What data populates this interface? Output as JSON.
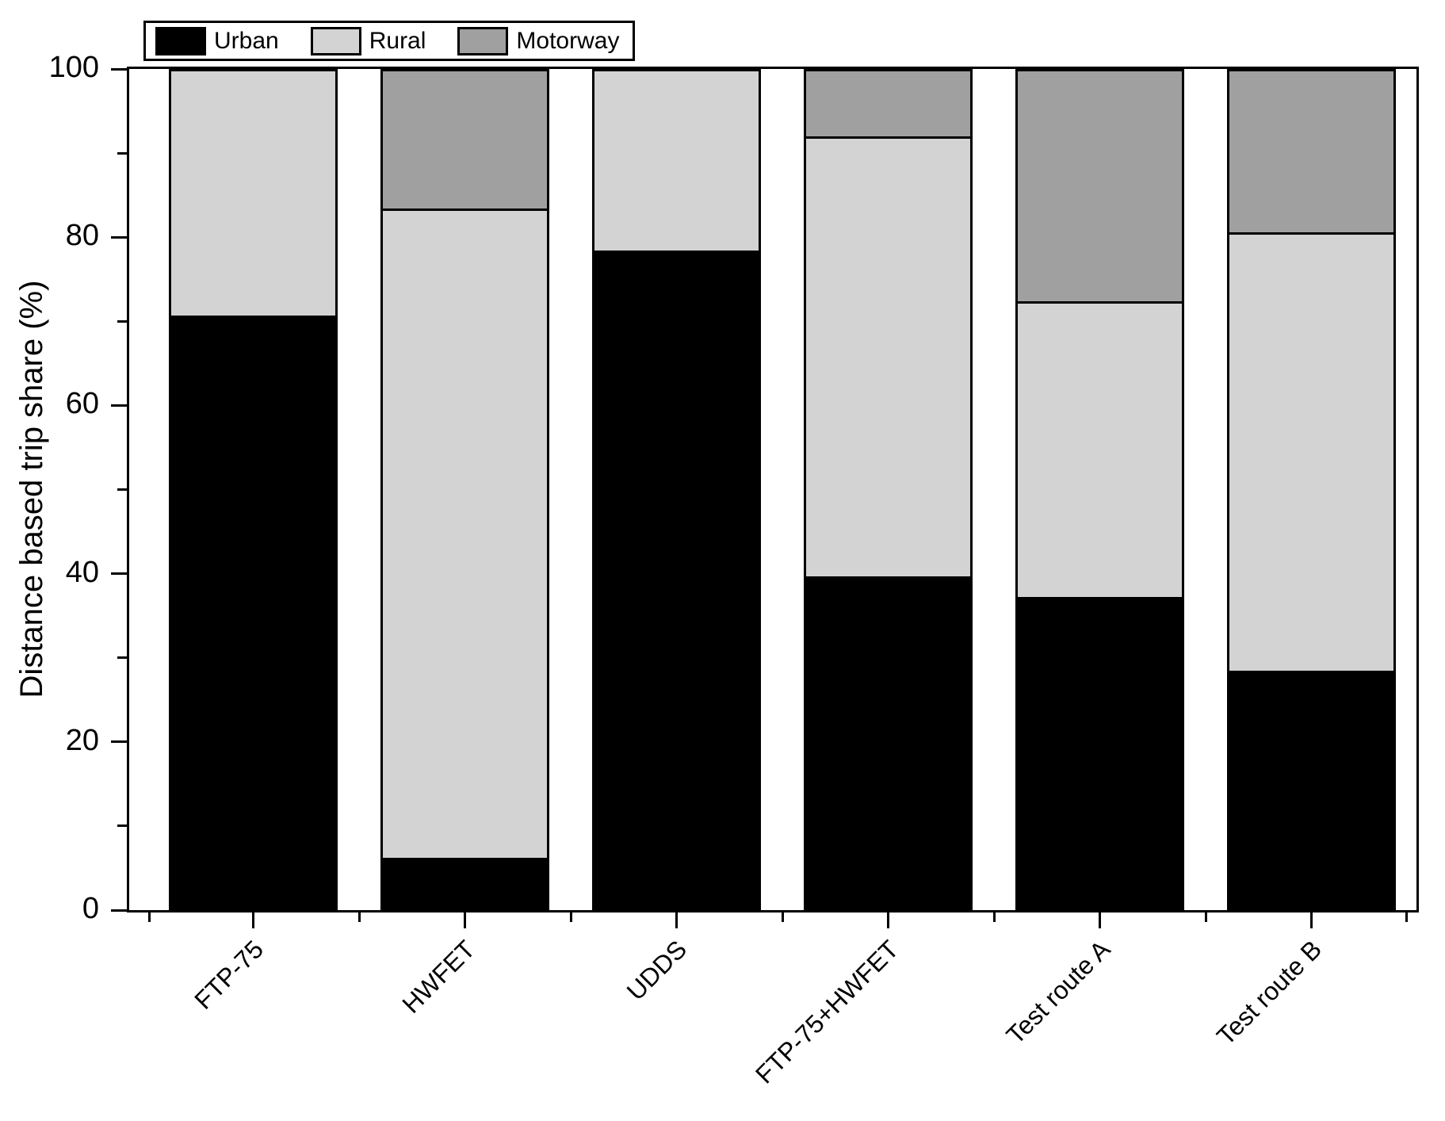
{
  "chart_data": {
    "type": "bar",
    "stacked": true,
    "title": "",
    "xlabel": "",
    "ylabel": "Distance based trip share (%)",
    "ylim": [
      0,
      100
    ],
    "yticks": [
      0,
      20,
      40,
      60,
      80,
      100
    ],
    "yticks_minor": [
      10,
      30,
      50,
      70,
      90
    ],
    "grid": false,
    "legend_position": "top-left",
    "categories": [
      "FTP-75",
      "HWFET",
      "UDDS",
      "FTP-75+HWFET",
      "Test route A",
      "Test route B"
    ],
    "series": [
      {
        "name": "Urban",
        "color": "#000000",
        "values": [
          70.7,
          6.2,
          78.4,
          39.7,
          37.2,
          28.5
        ]
      },
      {
        "name": "Rural",
        "color": "#d3d3d3",
        "values": [
          29.3,
          77.2,
          21.6,
          52.3,
          35.2,
          52.1
        ]
      },
      {
        "name": "Motorway",
        "color": "#a0a0a0",
        "values": [
          0.0,
          16.6,
          0.0,
          8.0,
          27.6,
          19.4
        ]
      }
    ]
  },
  "colors": {
    "axis": "#000000",
    "background": "#ffffff"
  }
}
